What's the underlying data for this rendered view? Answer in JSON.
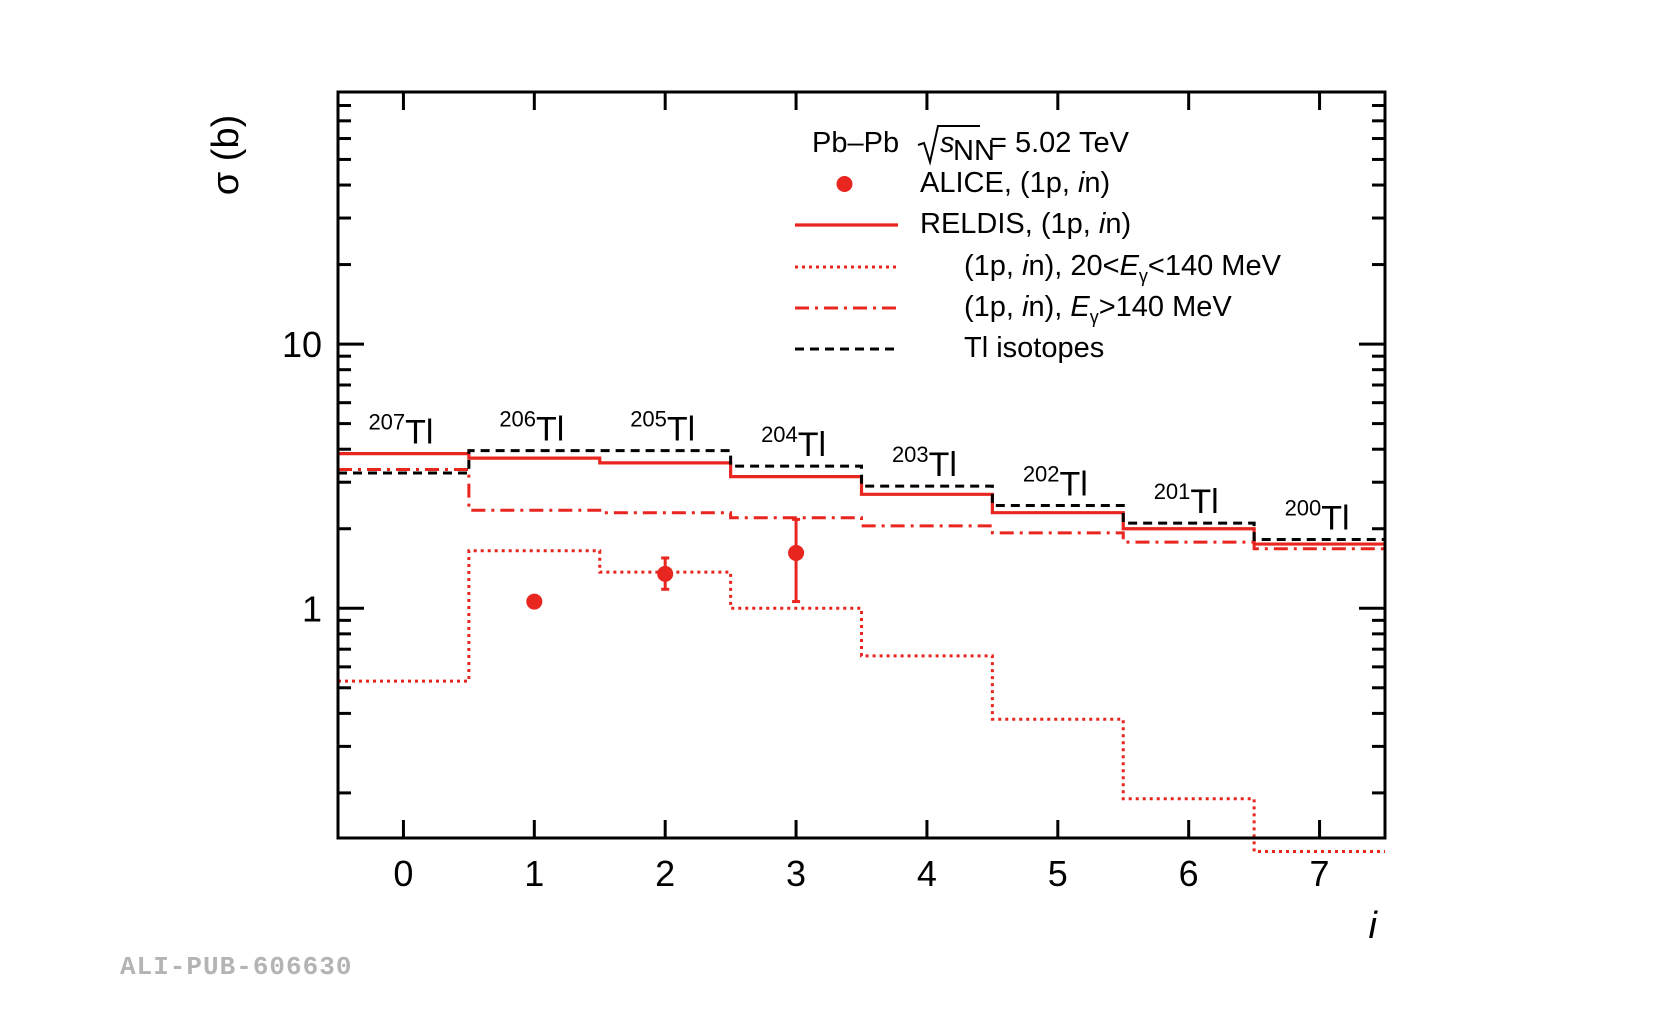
{
  "chart_data": {
    "type": "line",
    "title": "",
    "xlabel": "i",
    "ylabel": "σ (b)",
    "xlim": [
      -0.5,
      7.5
    ],
    "ylim": [
      0.135,
      90
    ],
    "yscale": "log",
    "grid": false,
    "legend_placement": "top-right",
    "x_ticks": [
      "0",
      "1",
      "2",
      "3",
      "4",
      "5",
      "6",
      "7"
    ],
    "y_tick_labels": [
      {
        "value": 1,
        "label": "1"
      },
      {
        "value": 10,
        "label": "10"
      }
    ],
    "header": {
      "system": "Pb–Pb",
      "sqrt": "s",
      "sub": "NN",
      "energy": "= 5.02 TeV"
    },
    "isotope_labels": [
      {
        "x": 0,
        "mass": "207",
        "elem": "Tl"
      },
      {
        "x": 1,
        "mass": "206",
        "elem": "Tl"
      },
      {
        "x": 2,
        "mass": "205",
        "elem": "Tl"
      },
      {
        "x": 3,
        "mass": "204",
        "elem": "Tl"
      },
      {
        "x": 4,
        "mass": "203",
        "elem": "Tl"
      },
      {
        "x": 5,
        "mass": "202",
        "elem": "Tl"
      },
      {
        "x": 6,
        "mass": "201",
        "elem": "Tl"
      },
      {
        "x": 7,
        "mass": "200",
        "elem": "Tl"
      }
    ],
    "series": [
      {
        "key": "alice",
        "style": "points",
        "color": "#e8251e",
        "points": [
          {
            "x": 1,
            "y": 1.06,
            "err_low": 0.0,
            "err_high": 0.0
          },
          {
            "x": 2,
            "y": 1.35,
            "err_low": 0.17,
            "err_high": 0.2
          },
          {
            "x": 3,
            "y": 1.62,
            "err_low": 0.56,
            "err_high": 0.55
          }
        ]
      },
      {
        "key": "reldis_total",
        "style": "solid",
        "color": "#e8251e",
        "x": [
          0,
          1,
          2,
          3,
          4,
          5,
          6,
          7
        ],
        "values": [
          3.85,
          3.7,
          3.55,
          3.15,
          2.7,
          2.3,
          2.0,
          1.75
        ]
      },
      {
        "key": "reldis_low",
        "style": "dotted",
        "color": "#e8251e",
        "x": [
          0,
          1,
          2,
          3,
          4,
          5,
          6,
          7
        ],
        "values": [
          0.53,
          1.65,
          1.37,
          1.0,
          0.66,
          0.38,
          0.19,
          0.12
        ]
      },
      {
        "key": "reldis_high",
        "style": "dashdot",
        "color": "#e8251e",
        "x": [
          0,
          1,
          2,
          3,
          4,
          5,
          6,
          7
        ],
        "values": [
          3.35,
          2.35,
          2.3,
          2.2,
          2.05,
          1.93,
          1.78,
          1.68
        ]
      },
      {
        "key": "tl_isotopes",
        "style": "dashed",
        "color": "#000000",
        "x": [
          0,
          1,
          2,
          3,
          4,
          5,
          6,
          7
        ],
        "values": [
          3.25,
          3.95,
          3.95,
          3.45,
          2.9,
          2.45,
          2.1,
          1.82
        ]
      }
    ],
    "legend": [
      {
        "key": "alice",
        "marker": "point",
        "label": "ALICE,",
        "extra_1": "(1p, ",
        "extra_it": "i",
        "extra_2": "n)"
      },
      {
        "key": "reldis_total",
        "marker": "solid",
        "label": "RELDIS, (1p, ",
        "extra_it": "i",
        "extra_2": "n)"
      },
      {
        "key": "reldis_low",
        "marker": "dotted",
        "label": "(1p, ",
        "extra_it": "i",
        "extra_2": "n), 20<",
        "e_it": "E",
        "e_sub": "γ",
        "tail": "<140 MeV"
      },
      {
        "key": "reldis_high",
        "marker": "dashdot",
        "label": "(1p, ",
        "extra_it": "i",
        "extra_2": "n), ",
        "e_it": "E",
        "e_sub": "γ",
        "tail": ">140 MeV"
      },
      {
        "key": "tl_isotopes",
        "marker": "dashed",
        "label": "Tl isotopes"
      }
    ],
    "colors": {
      "red": "#e8251e",
      "black": "#000000"
    }
  },
  "watermark": "ALI-PUB-606630"
}
